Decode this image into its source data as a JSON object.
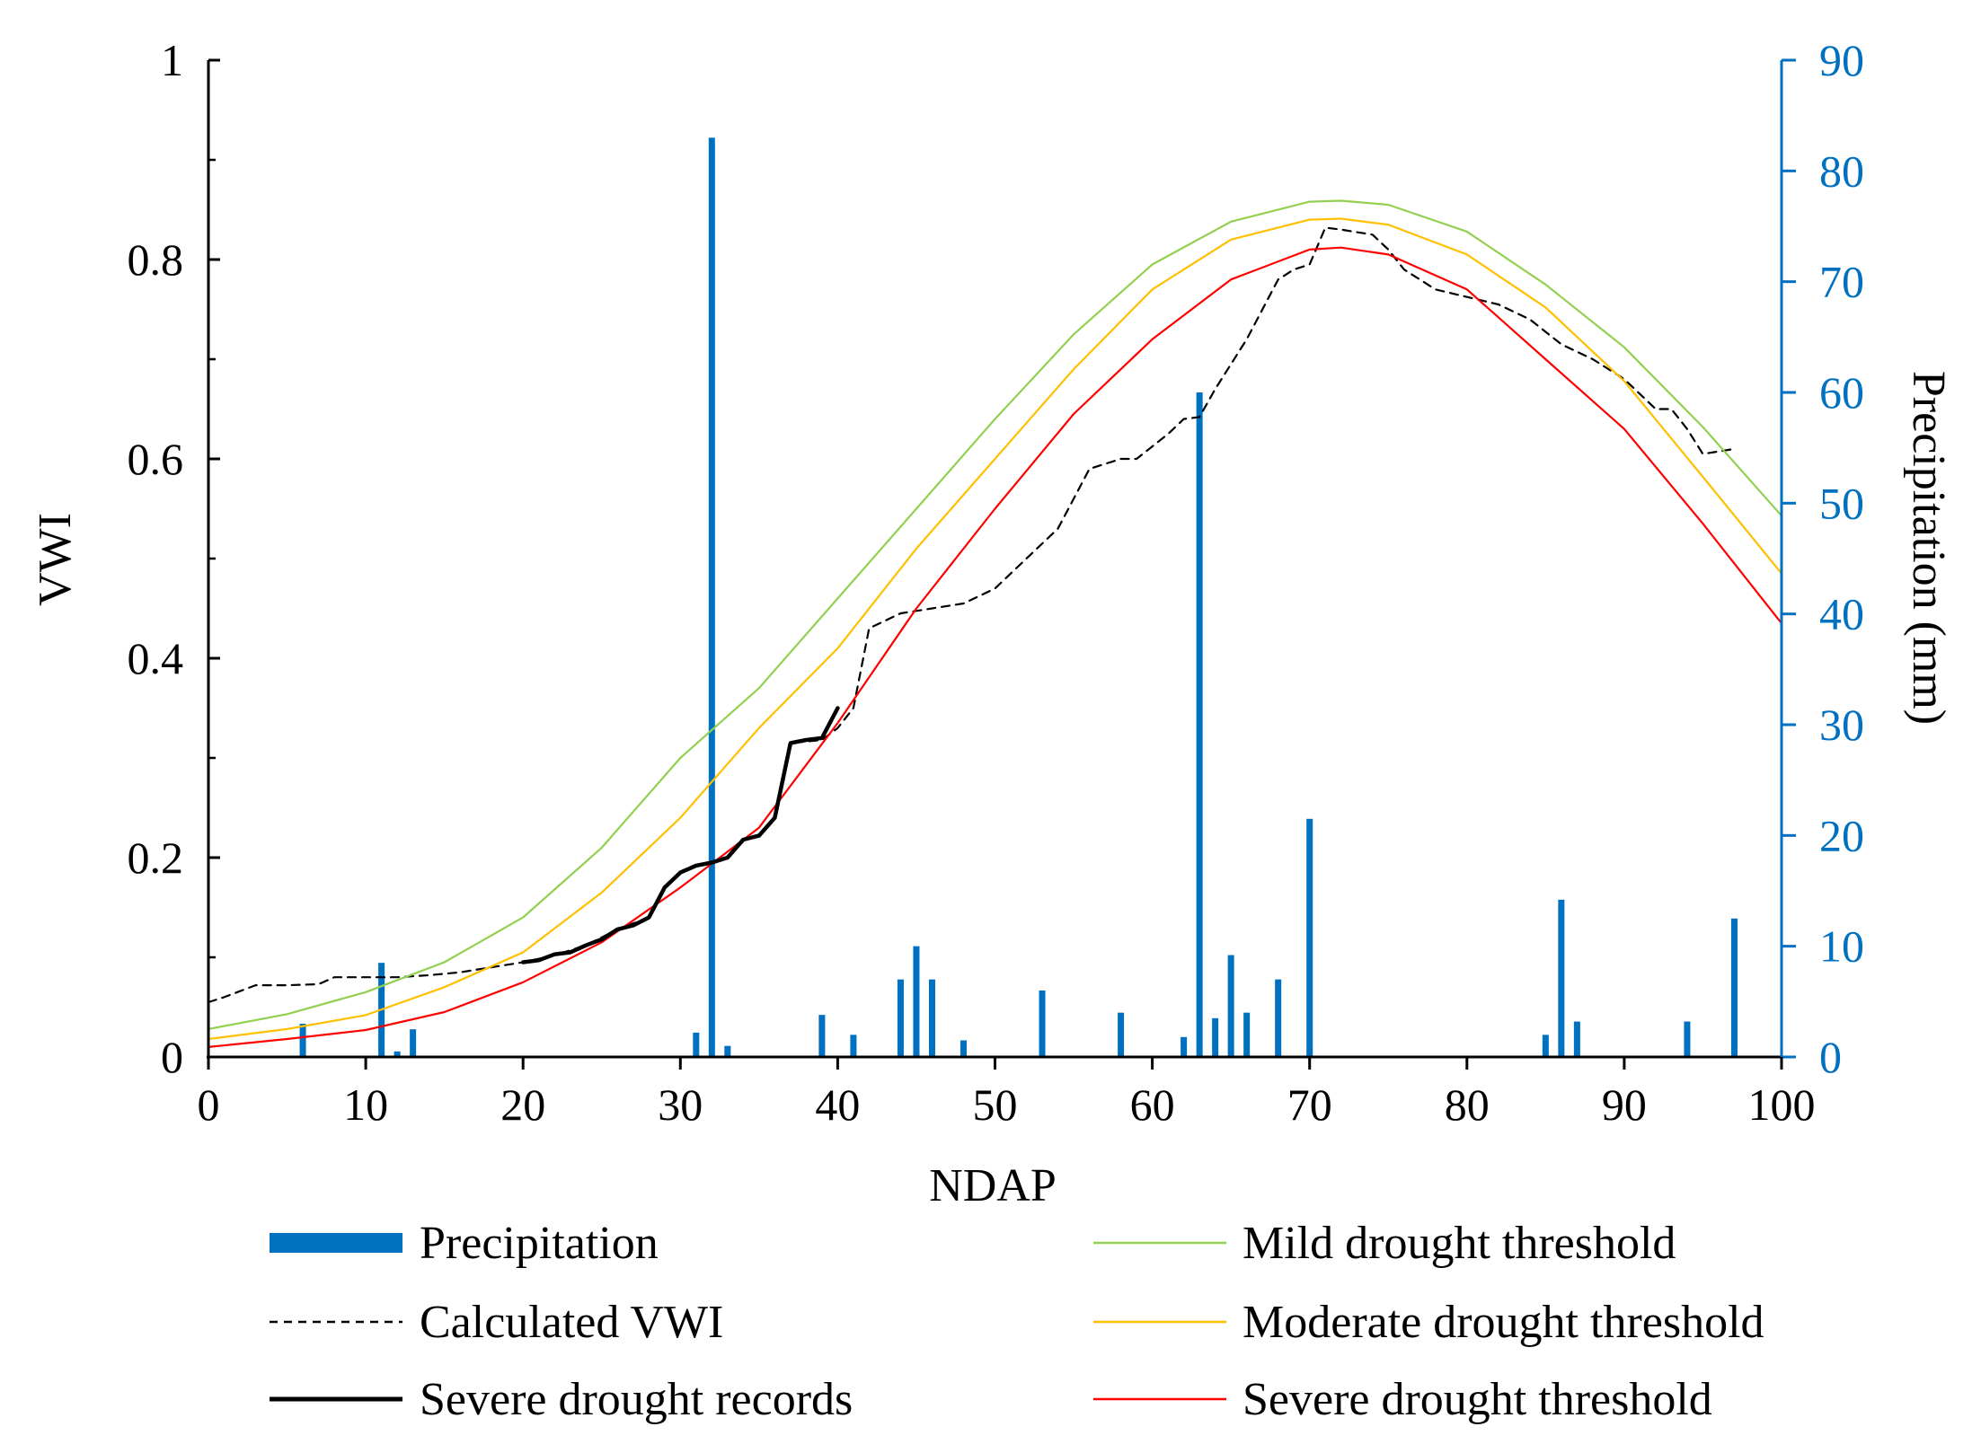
{
  "chart_data": {
    "type": "bar+line",
    "title": "",
    "xlabel": "NDAP",
    "ylabel": "VWI",
    "y2label": "Precipitation (mm)",
    "xlim": [
      0,
      100
    ],
    "ylim": [
      0,
      1
    ],
    "y2lim": [
      0,
      90
    ],
    "x_ticks": [
      0,
      10,
      20,
      30,
      40,
      50,
      60,
      70,
      80,
      90,
      100
    ],
    "y_ticks": [
      0,
      0.2,
      0.4,
      0.6,
      0.8,
      1
    ],
    "y_tick_labels": [
      "0",
      "0.2",
      "0.4",
      "0.6",
      "0.8",
      "1"
    ],
    "y2_ticks": [
      0,
      10,
      20,
      30,
      40,
      50,
      60,
      70,
      80,
      90
    ],
    "grid": false,
    "colors": {
      "precipitation": "#0070C0",
      "mild": "#92D050",
      "moderate": "#FFC000",
      "severe_threshold": "#FF0000",
      "calculated": "#000000",
      "severe_records": "#000000"
    },
    "precipitation": {
      "name": "Precipitation",
      "axis": "right",
      "x": [
        6,
        11,
        12,
        13,
        31,
        32,
        33,
        39,
        41,
        44,
        45,
        46,
        48,
        53,
        58,
        62,
        63,
        64,
        65,
        66,
        68,
        70,
        85,
        86,
        87,
        94,
        97
      ],
      "values": [
        3,
        8.5,
        0.5,
        2.5,
        2.2,
        83,
        1,
        3.8,
        2,
        7,
        10,
        7,
        1.5,
        6,
        4,
        1.8,
        60,
        3.5,
        9.2,
        4,
        7,
        21.5,
        2,
        14.2,
        3.2,
        3.2,
        12.5
      ]
    },
    "series": [
      {
        "name": "Calculated VWI",
        "style": "dashed",
        "x": [
          0,
          1,
          3,
          5,
          7,
          8,
          10,
          12,
          14,
          16,
          18,
          20,
          22,
          24,
          26,
          28,
          29,
          30,
          31,
          32,
          33,
          34,
          35,
          36,
          37,
          39,
          40,
          41,
          42,
          44,
          46,
          48,
          50,
          52,
          54,
          55,
          56,
          58,
          59,
          61,
          62,
          63,
          64,
          66,
          68,
          69,
          70,
          71,
          72,
          74,
          75,
          76,
          78,
          82,
          84,
          86,
          88,
          90,
          91,
          92,
          93,
          94,
          95,
          97
        ],
        "values": [
          0.055,
          0.06,
          0.072,
          0.072,
          0.073,
          0.08,
          0.08,
          0.08,
          0.082,
          0.085,
          0.09,
          0.095,
          0.102,
          0.112,
          0.128,
          0.14,
          0.17,
          0.185,
          0.192,
          0.195,
          0.2,
          0.218,
          0.222,
          0.24,
          0.315,
          0.318,
          0.33,
          0.35,
          0.43,
          0.445,
          0.45,
          0.455,
          0.47,
          0.5,
          0.53,
          0.56,
          0.59,
          0.6,
          0.6,
          0.625,
          0.64,
          0.642,
          0.67,
          0.72,
          0.78,
          0.79,
          0.795,
          0.832,
          0.83,
          0.825,
          0.81,
          0.79,
          0.77,
          0.755,
          0.74,
          0.715,
          0.7,
          0.68,
          0.665,
          0.65,
          0.65,
          0.63,
          0.605,
          0.61
        ]
      },
      {
        "name": "Severe drought records",
        "style": "solid-bold",
        "x": [
          20,
          21,
          22,
          23,
          24,
          25,
          26,
          27,
          28,
          29,
          30,
          31,
          32,
          33,
          34,
          35,
          36,
          37,
          38,
          39,
          40
        ],
        "values": [
          0.095,
          0.097,
          0.103,
          0.105,
          0.112,
          0.118,
          0.128,
          0.132,
          0.14,
          0.17,
          0.185,
          0.192,
          0.195,
          0.2,
          0.218,
          0.222,
          0.24,
          0.315,
          0.318,
          0.32,
          0.35
        ]
      },
      {
        "name": "Mild drought threshold",
        "style": "solid",
        "x": [
          0,
          5,
          10,
          15,
          20,
          25,
          30,
          35,
          40,
          45,
          50,
          55,
          60,
          65,
          70,
          72,
          75,
          80,
          85,
          90,
          95,
          100
        ],
        "values": [
          0.028,
          0.043,
          0.065,
          0.095,
          0.14,
          0.21,
          0.3,
          0.37,
          0.46,
          0.55,
          0.64,
          0.725,
          0.795,
          0.838,
          0.858,
          0.859,
          0.855,
          0.828,
          0.775,
          0.712,
          0.632,
          0.543
        ]
      },
      {
        "name": "Moderate drought threshold",
        "style": "solid",
        "x": [
          0,
          5,
          10,
          15,
          20,
          25,
          30,
          35,
          40,
          45,
          50,
          55,
          60,
          65,
          70,
          72,
          75,
          80,
          85,
          90,
          95,
          100
        ],
        "values": [
          0.018,
          0.028,
          0.042,
          0.07,
          0.105,
          0.165,
          0.24,
          0.33,
          0.41,
          0.51,
          0.6,
          0.69,
          0.77,
          0.82,
          0.84,
          0.841,
          0.835,
          0.805,
          0.752,
          0.678,
          0.582,
          0.485
        ]
      },
      {
        "name": "Severe drought threshold",
        "style": "solid",
        "x": [
          0,
          5,
          10,
          15,
          20,
          25,
          30,
          35,
          40,
          45,
          50,
          55,
          60,
          65,
          70,
          72,
          75,
          80,
          85,
          90,
          95,
          100
        ],
        "values": [
          0.01,
          0.018,
          0.027,
          0.045,
          0.075,
          0.115,
          0.17,
          0.23,
          0.335,
          0.45,
          0.55,
          0.645,
          0.72,
          0.78,
          0.81,
          0.812,
          0.805,
          0.77,
          0.7,
          0.63,
          0.535,
          0.435
        ]
      }
    ],
    "legend": [
      {
        "label": "Precipitation",
        "kind": "bar",
        "key": "precipitation"
      },
      {
        "label": "Mild drought threshold",
        "kind": "line",
        "key": "mild"
      },
      {
        "label": "Calculated VWI",
        "kind": "dashed",
        "key": "calculated"
      },
      {
        "label": "Moderate drought threshold",
        "kind": "line",
        "key": "moderate"
      },
      {
        "label": "Severe drought records",
        "kind": "bold",
        "key": "severe_records"
      },
      {
        "label": "Severe drought threshold",
        "kind": "line",
        "key": "severe_threshold"
      }
    ]
  }
}
